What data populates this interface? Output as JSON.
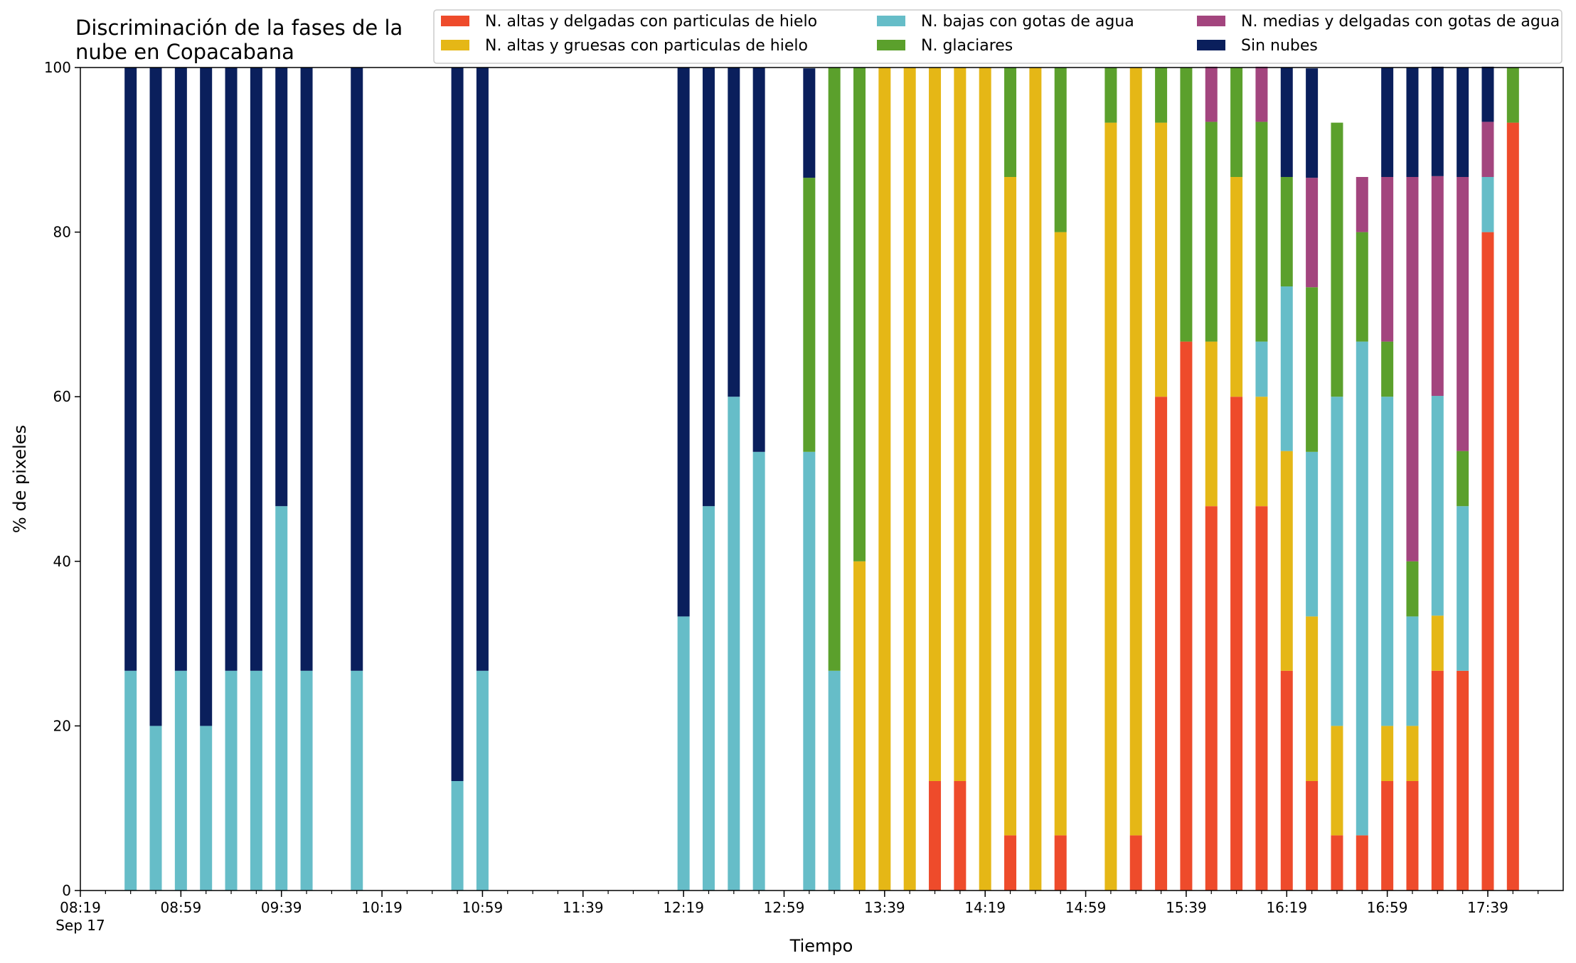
{
  "chart_data": {
    "type": "bar",
    "stacked": true,
    "title": "Discriminación de la fases de la\nnube en Copacabana",
    "xlabel": "Tiempo",
    "ylabel": "% de pixeles",
    "ylim": [
      0,
      100
    ],
    "yticks": [
      0,
      20,
      40,
      60,
      80,
      100
    ],
    "xlim": [
      "08:19",
      "18:09"
    ],
    "x_major_ticks": [
      "08:19",
      "08:59",
      "09:39",
      "10:19",
      "10:59",
      "11:39",
      "12:19",
      "12:59",
      "13:39",
      "14:19",
      "14:59",
      "15:39",
      "16:19",
      "16:59",
      "17:39"
    ],
    "x_first_tick_sublabel": "Sep 17",
    "x_minor_tick_step_minutes": 10,
    "grid": false,
    "legend": {
      "placement": "top",
      "columns": 3
    },
    "x": [
      "08:39",
      "08:49",
      "08:59",
      "09:09",
      "09:19",
      "09:29",
      "09:39",
      "09:49",
      "10:09",
      "10:49",
      "10:59",
      "12:19",
      "12:29",
      "12:39",
      "12:49",
      "13:09",
      "13:19",
      "13:29",
      "13:39",
      "13:49",
      "13:59",
      "14:09",
      "14:19",
      "14:29",
      "14:39",
      "14:49",
      "15:09",
      "15:19",
      "15:29",
      "15:39",
      "15:49",
      "15:59",
      "16:09",
      "16:19",
      "16:29",
      "16:39",
      "16:49",
      "16:59",
      "17:09",
      "17:19",
      "17:29",
      "17:39",
      "17:49"
    ],
    "series": [
      {
        "name": "N. altas y delgadas con particulas de hielo",
        "color": "#ee4b2b",
        "values": [
          0,
          0,
          0,
          0,
          0,
          0,
          0,
          0,
          0,
          0,
          0,
          0,
          0,
          0,
          0,
          0,
          0,
          0,
          0,
          0,
          13.3,
          13.3,
          0,
          6.7,
          0,
          6.7,
          0,
          6.7,
          60,
          66.7,
          46.7,
          60,
          46.7,
          26.7,
          13.3,
          6.7,
          6.7,
          13.3,
          13.3,
          26.7,
          26.7,
          80,
          93.3
        ]
      },
      {
        "name": "N. altas y gruesas con particulas de hielo",
        "color": "#e5b716",
        "values": [
          0,
          0,
          0,
          0,
          0,
          0,
          0,
          0,
          0,
          0,
          0,
          0,
          0,
          0,
          0,
          0,
          0,
          40,
          100,
          100,
          86.7,
          86.7,
          100,
          80,
          100,
          73.3,
          93.3,
          93.3,
          33.3,
          0,
          20,
          26.7,
          13.3,
          26.7,
          20,
          13.3,
          0,
          6.7,
          6.7,
          6.7,
          0,
          0,
          0
        ]
      },
      {
        "name": "N. bajas con gotas de agua",
        "color": "#66bdc8",
        "values": [
          26.7,
          20,
          26.7,
          20,
          26.7,
          26.7,
          46.7,
          26.7,
          26.7,
          13.3,
          26.7,
          33.3,
          46.7,
          60,
          53.3,
          53.3,
          26.7,
          0,
          0,
          0,
          0,
          0,
          0,
          0,
          0,
          0,
          0,
          0,
          0,
          0,
          0,
          0,
          6.7,
          20,
          20,
          40,
          60,
          40,
          13.3,
          26.7,
          20,
          6.7,
          0
        ]
      },
      {
        "name": "N. glaciares",
        "color": "#5ba02c",
        "values": [
          0,
          0,
          0,
          0,
          0,
          0,
          0,
          0,
          0,
          0,
          0,
          0,
          0,
          0,
          0,
          33.3,
          73.3,
          60,
          0,
          0,
          0,
          0,
          0,
          13.3,
          0,
          20,
          6.7,
          0,
          6.7,
          33.3,
          26.7,
          13.3,
          26.7,
          13.3,
          20,
          33.3,
          13.3,
          6.7,
          6.7,
          0,
          6.7,
          0,
          6.7
        ]
      },
      {
        "name": "N. medias y delgadas con gotas de agua",
        "color": "#a3457e",
        "values": [
          0,
          0,
          0,
          0,
          0,
          0,
          0,
          0,
          0,
          0,
          0,
          0,
          0,
          0,
          0,
          0,
          0,
          0,
          0,
          0,
          0,
          0,
          0,
          0,
          0,
          0,
          0,
          0,
          0,
          0,
          6.7,
          0,
          6.7,
          0,
          13.3,
          0,
          6.7,
          20,
          46.7,
          26.7,
          33.3,
          6.7,
          0
        ]
      },
      {
        "name": "Sin nubes",
        "color": "#0a1f5c",
        "values": [
          73.3,
          80,
          73.3,
          80,
          73.3,
          73.3,
          53.3,
          73.3,
          73.3,
          86.7,
          73.3,
          66.7,
          53.3,
          40,
          46.7,
          13.3,
          0,
          0,
          0,
          0,
          0,
          0,
          0,
          0,
          0,
          0,
          0,
          0,
          0,
          0,
          0,
          0,
          0,
          13.3,
          13.3,
          0,
          0,
          13.3,
          13.3,
          13.3,
          13.3,
          6.7,
          0
        ]
      }
    ]
  }
}
